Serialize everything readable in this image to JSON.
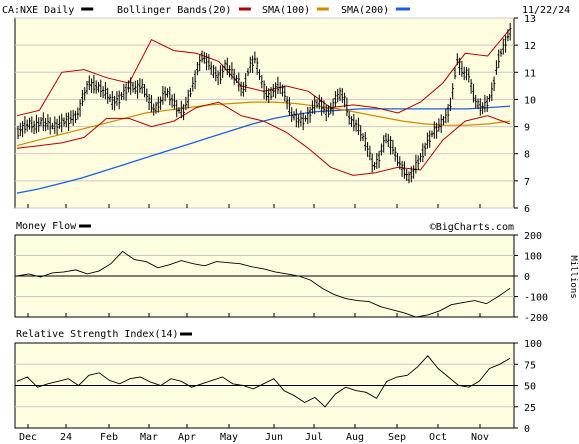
{
  "chart_data": [
    {
      "type": "ohlc",
      "ticker": "CA:NXE Daily",
      "date_label": "11/22/24",
      "legend": [
        {
          "name": "CA:NXE Daily",
          "color": "#000000"
        },
        {
          "name": "Bollinger Bands(20)",
          "color": "#000000"
        },
        {
          "name": "SMA(100)",
          "color": "#b00000"
        },
        {
          "name": "SMA(200)",
          "color": "#d08a00"
        },
        {
          "name": "",
          "color": "#1d5fe0"
        }
      ],
      "yticks": [
        6,
        7,
        8,
        9,
        10,
        11,
        12,
        13
      ],
      "ylim": [
        6,
        13
      ],
      "watermark": "©BigCharts.com",
      "price_closes": [
        8.8,
        9.0,
        9.1,
        9.0,
        9.2,
        9.1,
        9.0,
        9.1,
        9.2,
        9.3,
        9.4,
        10.1,
        10.6,
        10.5,
        10.4,
        10.2,
        9.9,
        10.0,
        10.3,
        10.5,
        10.4,
        10.5,
        10.0,
        9.6,
        9.9,
        10.3,
        10.0,
        9.6,
        9.6,
        10.2,
        10.9,
        11.6,
        11.4,
        11.0,
        10.8,
        11.3,
        11.0,
        10.7,
        10.3,
        11.2,
        11.5,
        10.7,
        10.1,
        10.3,
        10.5,
        10.2,
        9.5,
        9.3,
        9.2,
        9.4,
        9.8,
        9.9,
        9.5,
        9.7,
        10.2,
        10.1,
        9.2,
        9.1,
        8.7,
        8.2,
        7.5,
        7.9,
        8.6,
        8.3,
        7.8,
        7.4,
        7.1,
        7.5,
        7.9,
        8.4,
        8.8,
        9.0,
        9.3,
        9.8,
        11.5,
        11.0,
        10.9,
        10.0,
        9.7,
        9.8,
        10.3,
        11.5,
        12.0,
        12.5
      ],
      "sma_100": [
        8.3,
        8.5,
        8.7,
        8.9,
        9.1,
        9.3,
        9.5,
        9.6,
        9.7,
        9.8,
        9.85,
        9.9,
        9.9,
        9.85,
        9.75,
        9.65,
        9.5,
        9.35,
        9.2,
        9.1,
        9.05,
        9.05,
        9.1,
        9.2
      ],
      "sma_200": [
        6.55,
        6.7,
        6.9,
        7.1,
        7.35,
        7.6,
        7.85,
        8.1,
        8.35,
        8.6,
        8.85,
        9.1,
        9.3,
        9.45,
        9.55,
        9.6,
        9.65,
        9.65,
        9.65,
        9.65,
        9.65,
        9.65,
        9.7,
        9.75
      ],
      "bollinger_upper": [
        9.4,
        9.6,
        11.0,
        11.1,
        10.8,
        10.6,
        12.2,
        11.8,
        11.7,
        11.4,
        10.5,
        10.3,
        10.5,
        10.3,
        9.7,
        9.8,
        9.7,
        9.5,
        9.9,
        10.6,
        11.7,
        11.6,
        12.6
      ],
      "bollinger_lower": [
        8.2,
        8.3,
        8.4,
        8.6,
        9.3,
        9.3,
        9.0,
        9.2,
        9.7,
        9.9,
        9.4,
        9.2,
        8.8,
        8.2,
        7.5,
        7.2,
        7.3,
        7.5,
        7.4,
        8.5,
        9.2,
        9.4,
        9.1
      ]
    },
    {
      "type": "line",
      "title": "Money Flow",
      "units": "Millions",
      "yticks": [
        200,
        100,
        0,
        -100,
        -200
      ],
      "ylim": [
        -200,
        200
      ],
      "values": [
        0,
        10,
        -5,
        15,
        20,
        30,
        10,
        25,
        60,
        120,
        80,
        70,
        40,
        55,
        75,
        60,
        50,
        70,
        65,
        60,
        45,
        35,
        20,
        10,
        0,
        -20,
        -60,
        -90,
        -110,
        -120,
        -125,
        -150,
        -165,
        -180,
        -200,
        -190,
        -170,
        -140,
        -130,
        -120,
        -135,
        -100,
        -60
      ]
    },
    {
      "type": "line",
      "title": "Relative Strength Index(14)",
      "yticks": [
        100,
        75,
        50,
        25,
        0
      ],
      "ylim": [
        0,
        100
      ],
      "reference_line": 50,
      "values": [
        55,
        60,
        48,
        52,
        55,
        58,
        50,
        62,
        65,
        56,
        52,
        58,
        60,
        54,
        50,
        58,
        55,
        48,
        52,
        56,
        60,
        52,
        50,
        46,
        52,
        58,
        44,
        38,
        30,
        36,
        25,
        40,
        48,
        44,
        42,
        35,
        55,
        60,
        62,
        72,
        85,
        70,
        60,
        50,
        48,
        55,
        70,
        75,
        82
      ]
    }
  ],
  "x_axis": {
    "labels": [
      "Dec",
      "24",
      "Feb",
      "Mar",
      "Apr",
      "May",
      "Jun",
      "Jul",
      "Aug",
      "Sep",
      "Oct",
      "Nov"
    ]
  }
}
